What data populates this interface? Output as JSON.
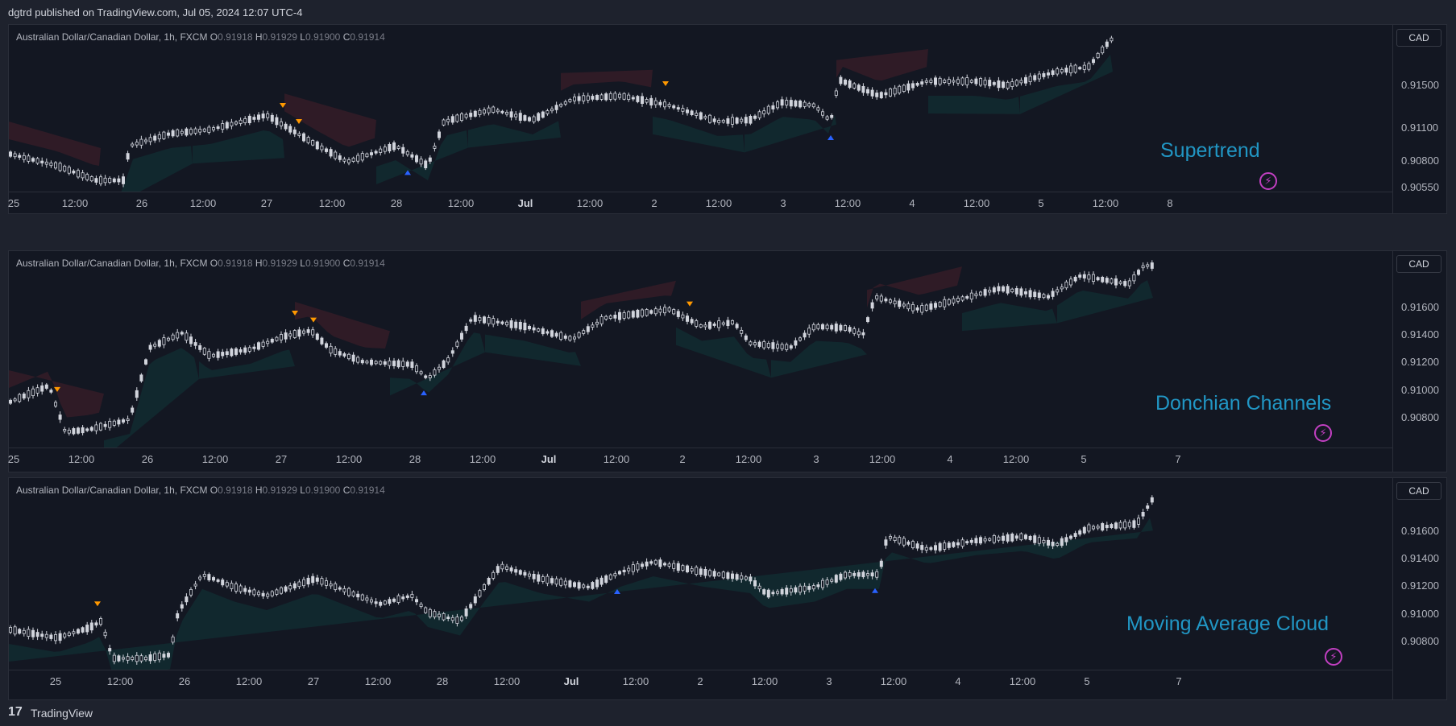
{
  "header": {
    "published": "dgtrd published on TradingView.com, Jul 05, 2024 12:07 UTC-4"
  },
  "footer": {
    "logo_glyph": "17",
    "brand": "TradingView"
  },
  "colors": {
    "background": "#131722",
    "candle": "#d1d4dc",
    "bull_zone": "#089981",
    "bear_zone": "#f23645",
    "buy_signal": "#2962ff",
    "sell_signal": "#ff9800",
    "watermark": "#2196c4",
    "bolt": "#c13fc1"
  },
  "panels": [
    {
      "legend": {
        "symbol": "Australian Dollar/Canadian Dollar, 1h, FXCM",
        "o_label": "O",
        "o": "0.91918",
        "h_label": "H",
        "h": "0.91929",
        "l_label": "L",
        "l": "0.91900",
        "c_label": "C",
        "c": "0.91914"
      },
      "currency": "CAD",
      "watermark": "Supertrend",
      "bolt_icon": "lightning-icon",
      "price_labels": [
        "0.91500",
        "0.91100",
        "0.90800",
        "0.90550"
      ],
      "time_labels": [
        {
          "text": "25",
          "bold": false
        },
        {
          "text": "12:00",
          "bold": false
        },
        {
          "text": "26",
          "bold": false
        },
        {
          "text": "12:00",
          "bold": false
        },
        {
          "text": "27",
          "bold": false
        },
        {
          "text": "12:00",
          "bold": false
        },
        {
          "text": "28",
          "bold": false
        },
        {
          "text": "12:00",
          "bold": false
        },
        {
          "text": "Jul",
          "bold": true
        },
        {
          "text": "12:00",
          "bold": false
        },
        {
          "text": "2",
          "bold": false
        },
        {
          "text": "12:00",
          "bold": false
        },
        {
          "text": "3",
          "bold": false
        },
        {
          "text": "12:00",
          "bold": false
        },
        {
          "text": "4",
          "bold": false
        },
        {
          "text": "12:00",
          "bold": false
        },
        {
          "text": "5",
          "bold": false
        },
        {
          "text": "12:00",
          "bold": false
        },
        {
          "text": "8",
          "bold": false
        }
      ]
    },
    {
      "legend": {
        "symbol": "Australian Dollar/Canadian Dollar, 1h, FXCM",
        "o_label": "O",
        "o": "0.91918",
        "h_label": "H",
        "h": "0.91929",
        "l_label": "L",
        "l": "0.91900",
        "c_label": "C",
        "c": "0.91914"
      },
      "currency": "CAD",
      "watermark": "Donchian Channels",
      "bolt_icon": "lightning-icon",
      "price_labels": [
        "0.91600",
        "0.91400",
        "0.91200",
        "0.91000",
        "0.90800"
      ],
      "time_labels": [
        {
          "text": "25",
          "bold": false
        },
        {
          "text": "12:00",
          "bold": false
        },
        {
          "text": "26",
          "bold": false
        },
        {
          "text": "12:00",
          "bold": false
        },
        {
          "text": "27",
          "bold": false
        },
        {
          "text": "12:00",
          "bold": false
        },
        {
          "text": "28",
          "bold": false
        },
        {
          "text": "12:00",
          "bold": false
        },
        {
          "text": "Jul",
          "bold": true
        },
        {
          "text": "12:00",
          "bold": false
        },
        {
          "text": "2",
          "bold": false
        },
        {
          "text": "12:00",
          "bold": false
        },
        {
          "text": "3",
          "bold": false
        },
        {
          "text": "12:00",
          "bold": false
        },
        {
          "text": "4",
          "bold": false
        },
        {
          "text": "12:00",
          "bold": false
        },
        {
          "text": "5",
          "bold": false
        },
        {
          "text": "7",
          "bold": false
        }
      ]
    },
    {
      "legend": {
        "symbol": "Australian Dollar/Canadian Dollar, 1h, FXCM",
        "o_label": "O",
        "o": "0.91918",
        "h_label": "H",
        "h": "0.91929",
        "l_label": "L",
        "l": "0.91900",
        "c_label": "C",
        "c": "0.91914"
      },
      "currency": "CAD",
      "watermark": "Moving Average Cloud",
      "bolt_icon": "lightning-icon",
      "price_labels": [
        "0.91600",
        "0.91400",
        "0.91200",
        "0.91000",
        "0.90800"
      ],
      "time_labels": [
        {
          "text": "25",
          "bold": false
        },
        {
          "text": "12:00",
          "bold": false
        },
        {
          "text": "26",
          "bold": false
        },
        {
          "text": "12:00",
          "bold": false
        },
        {
          "text": "27",
          "bold": false
        },
        {
          "text": "12:00",
          "bold": false
        },
        {
          "text": "28",
          "bold": false
        },
        {
          "text": "12:00",
          "bold": false
        },
        {
          "text": "Jul",
          "bold": true
        },
        {
          "text": "12:00",
          "bold": false
        },
        {
          "text": "2",
          "bold": false
        },
        {
          "text": "12:00",
          "bold": false
        },
        {
          "text": "3",
          "bold": false
        },
        {
          "text": "12:00",
          "bold": false
        },
        {
          "text": "4",
          "bold": false
        },
        {
          "text": "12:00",
          "bold": false
        },
        {
          "text": "5",
          "bold": false
        },
        {
          "text": "7",
          "bold": false
        }
      ]
    }
  ]
}
